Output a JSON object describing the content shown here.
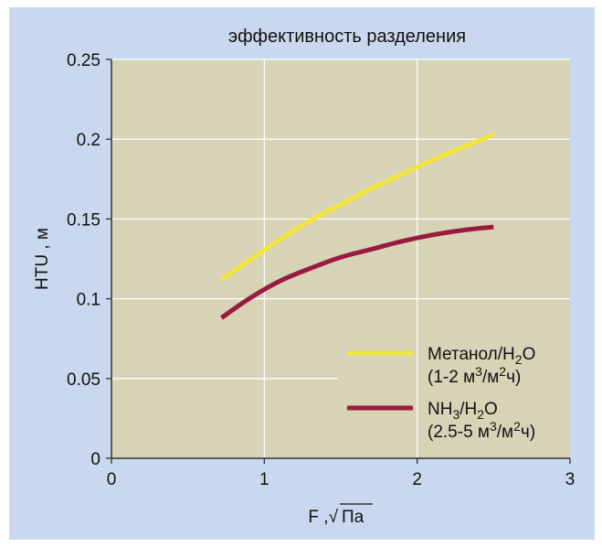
{
  "chart_data": {
    "type": "line",
    "title": "эффективность разделения",
    "ylabel": "HTU ,  м",
    "xlabel": {
      "prefix": "F ,",
      "radical": "√",
      "radicand": "Па"
    },
    "xlim": [
      0,
      3
    ],
    "ylim": [
      0,
      0.25
    ],
    "x_ticks": [
      0,
      1,
      2,
      3
    ],
    "x_tick_labels": [
      "0",
      "1",
      "2",
      "3"
    ],
    "y_ticks": [
      0,
      0.05,
      0.1,
      0.15,
      0.2,
      0.25
    ],
    "y_tick_labels": [
      "0",
      "0.05",
      "0.1",
      "0.15",
      "0.2",
      "0.25"
    ],
    "grid": true,
    "legend_position": "bottom-right",
    "series": [
      {
        "legend": {
          "main": "Метанол/H",
          "sub": "2",
          "after": "O",
          "line2": "(1-2 м",
          "sup1": "3",
          "mid": "/м",
          "sup2": "2",
          "end": "ч)"
        },
        "color": "#f2e63c",
        "x": [
          0.72,
          0.9,
          1.1,
          1.3,
          1.5,
          1.7,
          1.9,
          2.1,
          2.3,
          2.5
        ],
        "y": [
          0.112,
          0.124,
          0.137,
          0.149,
          0.159,
          0.169,
          0.178,
          0.187,
          0.195,
          0.203
        ]
      },
      {
        "legend": {
          "main": "NH",
          "sub": "3",
          "mid": "/H",
          "sub2": "2",
          "after": "O",
          "line2": "(2.5-5 м",
          "sup1": "3",
          "mid2": "/м",
          "sup2": "2",
          "end": "ч)"
        },
        "color": "#9a1a40",
        "x": [
          0.72,
          0.9,
          1.1,
          1.3,
          1.5,
          1.7,
          1.9,
          2.1,
          2.3,
          2.5
        ],
        "y": [
          0.088,
          0.1,
          0.111,
          0.119,
          0.126,
          0.131,
          0.136,
          0.14,
          0.143,
          0.145
        ]
      }
    ]
  },
  "colors": {
    "panel": "#c9d8ee",
    "plot_bg": "#d6d3b6",
    "grid": "#ffffff",
    "axis": "#333333"
  }
}
